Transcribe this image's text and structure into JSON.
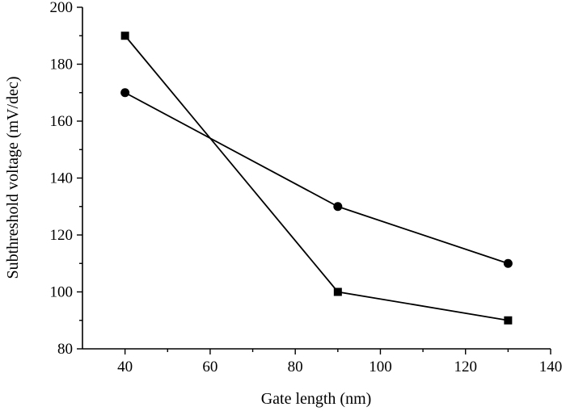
{
  "chart_data": {
    "type": "line",
    "title": "",
    "xlabel": "Gate length (nm)",
    "ylabel": "Subthreshold voltage (mV/dec)",
    "xlim": [
      30,
      140
    ],
    "ylim": [
      80,
      200
    ],
    "xticks": [
      40,
      60,
      80,
      100,
      120,
      140
    ],
    "yticks": [
      80,
      100,
      120,
      140,
      160,
      180,
      200
    ],
    "grid": false,
    "legend": "none",
    "series": [
      {
        "marker": "circle",
        "color": "#000000",
        "x": [
          40,
          90,
          130
        ],
        "y": [
          170,
          130,
          110
        ]
      },
      {
        "marker": "square",
        "color": "#000000",
        "x": [
          40,
          90,
          130
        ],
        "y": [
          190,
          100,
          90
        ]
      }
    ]
  }
}
